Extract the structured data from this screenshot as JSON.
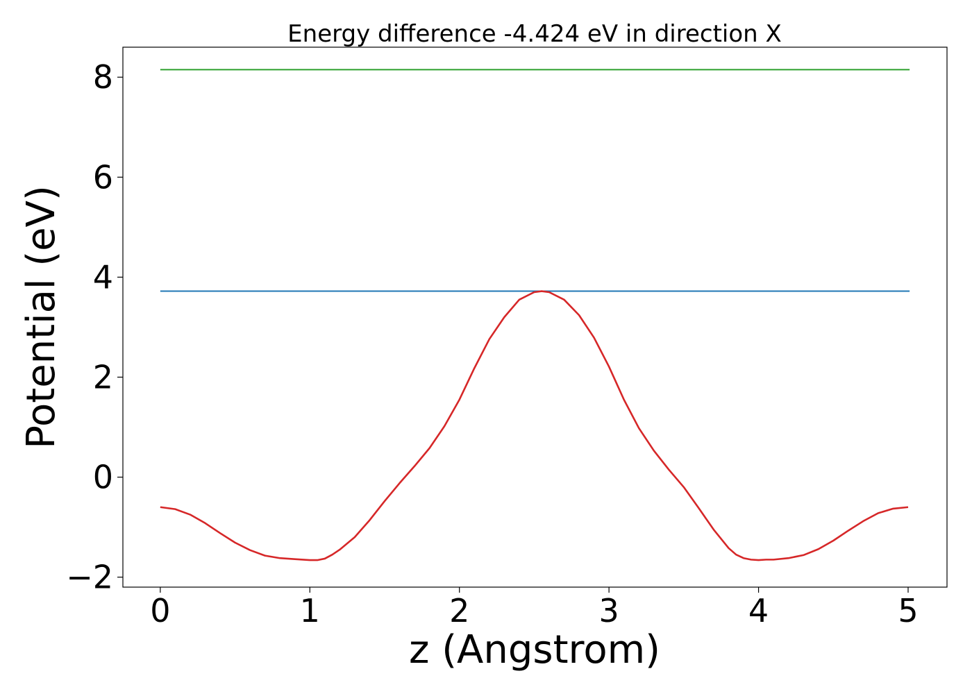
{
  "chart_data": {
    "type": "line",
    "title": "Energy difference -4.424 eV in direction X",
    "xlabel": "z (Angstrom)",
    "ylabel": "Potential (eV)",
    "xlim": [
      -0.25,
      5.26
    ],
    "ylim": [
      -2.2,
      8.6
    ],
    "xticks": [
      0,
      1,
      2,
      3,
      4,
      5
    ],
    "yticks": [
      -2,
      0,
      2,
      4,
      6,
      8
    ],
    "xtick_labels": [
      "0",
      "1",
      "2",
      "3",
      "4",
      "5"
    ],
    "ytick_labels": [
      "−2",
      "0",
      "2",
      "4",
      "6",
      "8"
    ],
    "grid": false,
    "legend": "none",
    "series": [
      {
        "color": "#2ca02c",
        "x": [
          0,
          5.01
        ],
        "y": [
          8.15,
          8.15
        ]
      },
      {
        "color": "#1f77b4",
        "x": [
          0,
          5.01
        ],
        "y": [
          3.72,
          3.72
        ]
      },
      {
        "color": "#d62728",
        "x": [
          0,
          0.1,
          0.2,
          0.3,
          0.4,
          0.5,
          0.6,
          0.7,
          0.8,
          0.9,
          1.0,
          1.05,
          1.1,
          1.15,
          1.2,
          1.3,
          1.4,
          1.5,
          1.6,
          1.7,
          1.8,
          1.9,
          2.0,
          2.1,
          2.2,
          2.3,
          2.4,
          2.5,
          2.55,
          2.6,
          2.7,
          2.8,
          2.9,
          3.0,
          3.1,
          3.2,
          3.3,
          3.4,
          3.5,
          3.6,
          3.7,
          3.8,
          3.85,
          3.9,
          3.95,
          4.0,
          4.05,
          4.1,
          4.2,
          4.3,
          4.4,
          4.5,
          4.6,
          4.7,
          4.8,
          4.9,
          5.0
        ],
        "y": [
          -0.6,
          -0.64,
          -0.75,
          -0.92,
          -1.12,
          -1.31,
          -1.46,
          -1.57,
          -1.62,
          -1.64,
          -1.66,
          -1.66,
          -1.63,
          -1.55,
          -1.45,
          -1.2,
          -0.86,
          -0.48,
          -0.12,
          0.22,
          0.58,
          1.02,
          1.55,
          2.18,
          2.76,
          3.2,
          3.55,
          3.7,
          3.72,
          3.7,
          3.55,
          3.24,
          2.79,
          2.21,
          1.55,
          0.98,
          0.53,
          0.15,
          -0.2,
          -0.62,
          -1.05,
          -1.42,
          -1.55,
          -1.62,
          -1.65,
          -1.66,
          -1.65,
          -1.65,
          -1.62,
          -1.56,
          -1.44,
          -1.27,
          -1.07,
          -0.88,
          -0.72,
          -0.63,
          -0.6
        ]
      }
    ]
  }
}
